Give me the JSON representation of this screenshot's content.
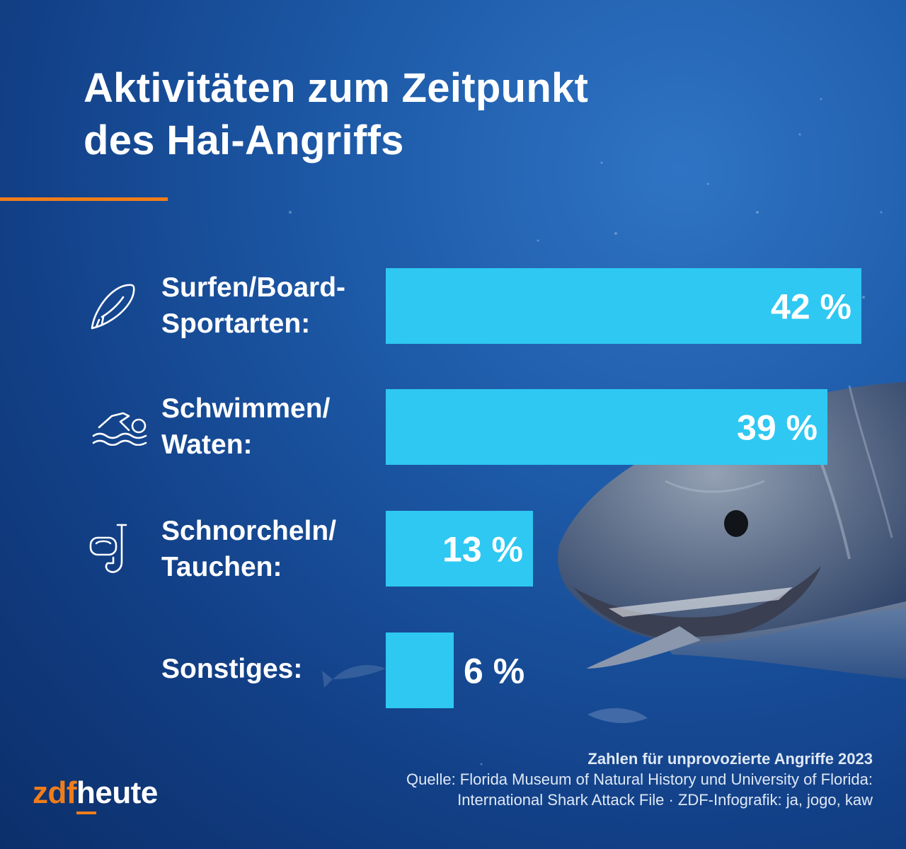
{
  "chart_data": {
    "type": "bar",
    "orientation": "horizontal",
    "title": [
      "Aktivitäten zum Zeitpunkt",
      "des Hai-Angriffs"
    ],
    "categories": [
      {
        "lines": [
          "Surfen/Board-",
          "Sportarten:"
        ],
        "icon": "surfboard-icon"
      },
      {
        "lines": [
          "Schwimmen/",
          "Waten:"
        ],
        "icon": "swimmer-icon"
      },
      {
        "lines": [
          "Schnorcheln/",
          "Tauchen:"
        ],
        "icon": "snorkel-icon"
      },
      {
        "lines": [
          "Sonstiges:"
        ],
        "icon": ""
      }
    ],
    "values": [
      42,
      39,
      13,
      6
    ],
    "value_labels": [
      "42 %",
      "39 %",
      "13 %",
      "6 %"
    ],
    "unit": "%",
    "bar_color": "#2ec8f2",
    "grid": false,
    "legend": "none"
  },
  "accent_color": "#f07d1a",
  "footer": {
    "note": "Zahlen für unprovozierte Angriffe 2023",
    "source_line1": "Quelle: Florida Museum of Natural History und University of Florida:",
    "source_line2": "International Shark Attack File · ZDF-Infografik: ja, jogo, kaw"
  },
  "logo": {
    "part1": "zdf",
    "part2": "heute"
  },
  "background": "shark-underwater-photo"
}
